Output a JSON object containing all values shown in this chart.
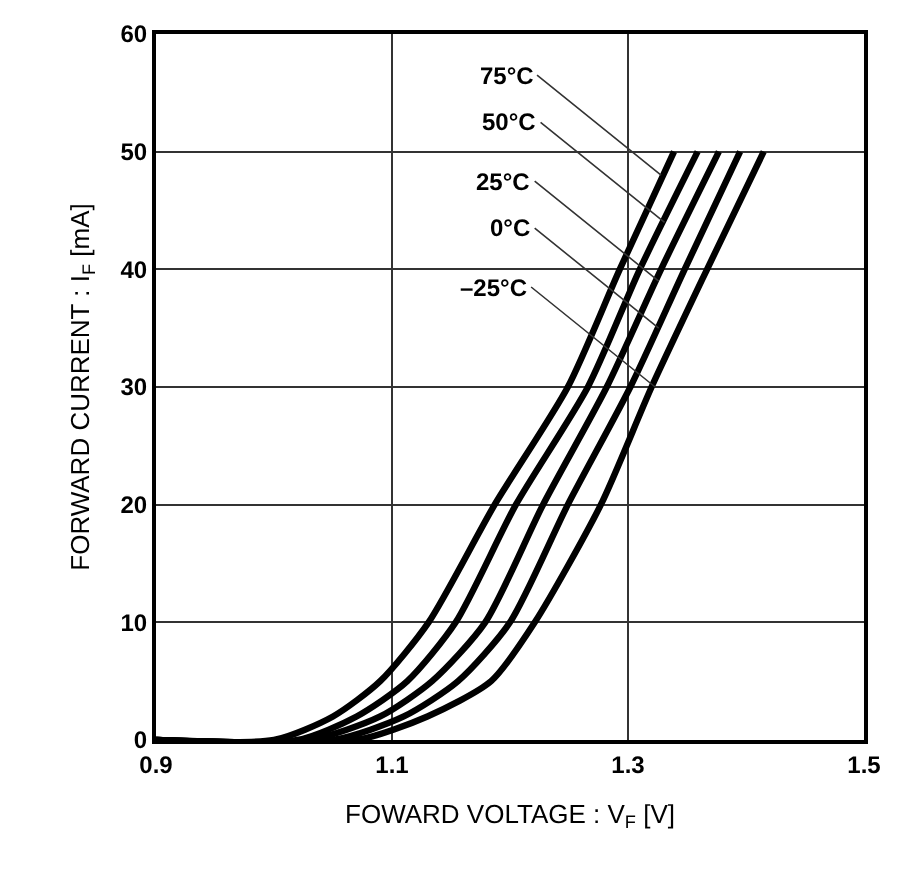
{
  "chart_data": {
    "type": "line",
    "xlabel": "FOWARD VOLTAGE : V$_{F}$ [V]",
    "ylabel": "FORWARD CURRENT : I$_{F}$ [mA]",
    "xlim": [
      0.9,
      1.5
    ],
    "xticks": [
      0.9,
      1.1,
      1.3,
      1.5
    ],
    "ylim": [
      0,
      60
    ],
    "yticks": [
      0,
      10,
      20,
      30,
      40,
      50,
      60
    ],
    "grid": true,
    "marker": "none",
    "line_style": "solid",
    "series": [
      {
        "color": "#000000",
        "x": [
          0.9,
          1.0,
          1.05,
          1.09,
          1.131,
          1.187,
          1.249,
          1.293,
          1.339
        ],
        "values": [
          0,
          0,
          2,
          5,
          10,
          20,
          30,
          40,
          50
        ]
      },
      {
        "color": "#000000",
        "x": [
          0.9,
          1.02,
          1.07,
          1.113,
          1.154,
          1.205,
          1.266,
          1.31,
          1.359
        ],
        "values": [
          0,
          0,
          2,
          5,
          10,
          20,
          30,
          40,
          50
        ]
      },
      {
        "color": "#000000",
        "x": [
          0.9,
          1.03,
          1.09,
          1.134,
          1.179,
          1.228,
          1.282,
          1.328,
          1.377
        ],
        "values": [
          0,
          0,
          2,
          5,
          10,
          20,
          30,
          40,
          50
        ]
      },
      {
        "color": "#000000",
        "x": [
          0.9,
          1.05,
          1.11,
          1.156,
          1.2,
          1.249,
          1.302,
          1.348,
          1.395
        ],
        "values": [
          0,
          0,
          2,
          5,
          10,
          20,
          30,
          40,
          50
        ]
      },
      {
        "color": "#000000",
        "x": [
          0.9,
          1.07,
          1.13,
          1.184,
          1.221,
          1.277,
          1.32,
          1.367,
          1.415
        ],
        "values": [
          0,
          0,
          2,
          5,
          10,
          20,
          30,
          40,
          50
        ]
      }
    ],
    "annotations": [
      {
        "text": "75°C",
        "x": 1.328,
        "y": 48
      },
      {
        "text": "50°C",
        "x": 1.331,
        "y": 44
      },
      {
        "text": "25°C",
        "x": 1.326,
        "y": 39
      },
      {
        "text": "0°C",
        "x": 1.326,
        "y": 35
      },
      {
        "text": "–25°C",
        "x": 1.323,
        "y": 30
      }
    ]
  }
}
